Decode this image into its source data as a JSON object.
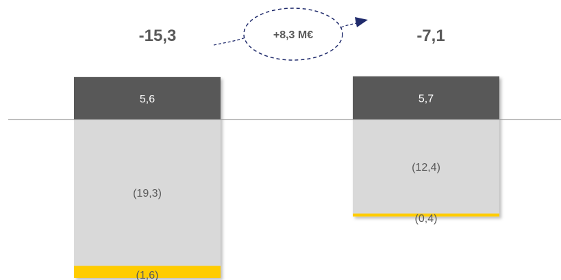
{
  "chart_data": {
    "type": "bar",
    "stacked": true,
    "categories": [
      "",
      ""
    ],
    "totals": [
      "-15,3",
      "-7,1"
    ],
    "series": [
      {
        "key": "positive",
        "color": "#595959",
        "text_color": "#ffffff",
        "values": [
          5.6,
          5.7
        ],
        "labels": [
          "5,6",
          "5,7"
        ]
      },
      {
        "key": "negative-main",
        "color": "#d9d9d9",
        "text_color": "#595959",
        "values": [
          -19.3,
          -12.4
        ],
        "labels": [
          "(19,3)",
          "(12,4)"
        ]
      },
      {
        "key": "negative-small",
        "color": "#ffcc00",
        "text_color": "#595959",
        "values": [
          -1.6,
          -0.4
        ],
        "labels": [
          "(1,6)",
          "(0,4)"
        ]
      }
    ],
    "change_annotation": "+8,3 M€",
    "axis_color": "#999999",
    "text_color": "#595959",
    "arrow_color": "#1f2a6b"
  }
}
